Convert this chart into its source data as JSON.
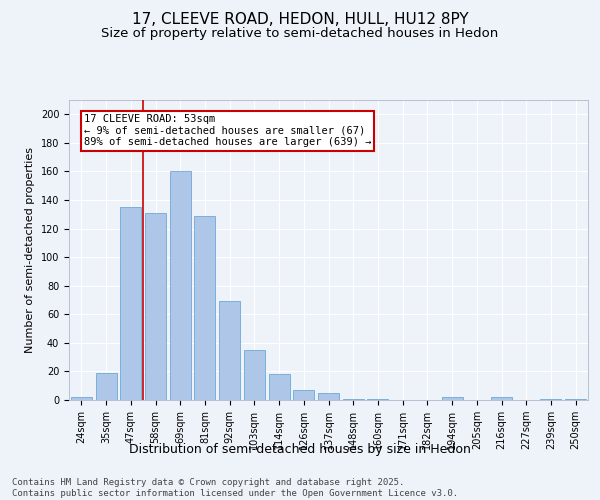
{
  "title_line1": "17, CLEEVE ROAD, HEDON, HULL, HU12 8PY",
  "title_line2": "Size of property relative to semi-detached houses in Hedon",
  "xlabel": "Distribution of semi-detached houses by size in Hedon",
  "ylabel": "Number of semi-detached properties",
  "categories": [
    "24sqm",
    "35sqm",
    "47sqm",
    "58sqm",
    "69sqm",
    "81sqm",
    "92sqm",
    "103sqm",
    "114sqm",
    "126sqm",
    "137sqm",
    "148sqm",
    "160sqm",
    "171sqm",
    "182sqm",
    "194sqm",
    "205sqm",
    "216sqm",
    "227sqm",
    "239sqm",
    "250sqm"
  ],
  "values": [
    2,
    19,
    135,
    131,
    160,
    129,
    69,
    35,
    18,
    7,
    5,
    1,
    1,
    0,
    0,
    2,
    0,
    2,
    0,
    1,
    1
  ],
  "bar_color": "#aec6e8",
  "bar_edge_color": "#5a9fd4",
  "property_label": "17 CLEEVE ROAD: 53sqm",
  "pct_smaller": 9,
  "pct_larger": 89,
  "n_smaller": 67,
  "n_larger": 639,
  "vline_x": 2.5,
  "annotation_box_color": "#ffffff",
  "annotation_box_edge": "#cc0000",
  "vline_color": "#cc0000",
  "ylim": [
    0,
    210
  ],
  "yticks": [
    0,
    20,
    40,
    60,
    80,
    100,
    120,
    140,
    160,
    180,
    200
  ],
  "background_color": "#eef2f9",
  "footer": "Contains HM Land Registry data © Crown copyright and database right 2025.\nContains public sector information licensed under the Open Government Licence v3.0.",
  "title_fontsize": 11,
  "subtitle_fontsize": 9.5,
  "axis_label_fontsize": 8,
  "tick_fontsize": 7,
  "annotation_fontsize": 7.5,
  "footer_fontsize": 6.5
}
